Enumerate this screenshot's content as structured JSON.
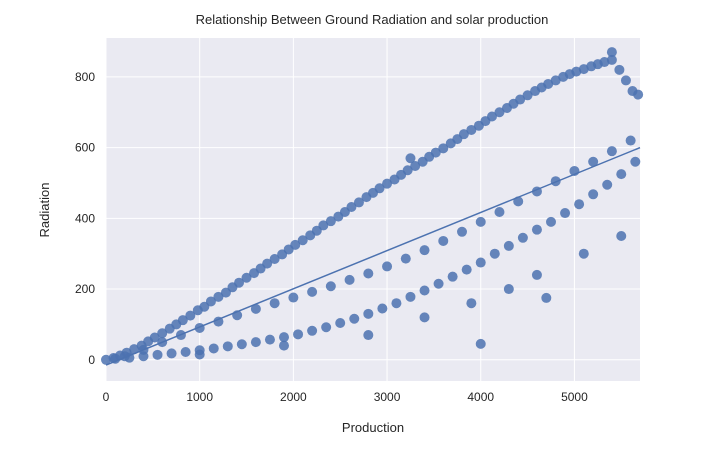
{
  "chart_data": {
    "type": "scatter",
    "title": "Relationship Between Ground Radiation and solar production",
    "xlabel": "Production",
    "ylabel": "Radiation",
    "xlim": [
      0,
      5700
    ],
    "ylim": [
      -60,
      910
    ],
    "x_ticks": [
      0,
      1000,
      2000,
      3000,
      4000,
      5000
    ],
    "y_ticks": [
      0,
      200,
      400,
      600,
      800
    ],
    "grid": true,
    "background": "#eaeaf2",
    "point_color": "#4c72b0",
    "trend_line": {
      "x": [
        0,
        5700
      ],
      "y": [
        -15,
        600
      ]
    },
    "series": [
      {
        "x": [
          0,
          80,
          150,
          220,
          300,
          380,
          450,
          520,
          600,
          680,
          750,
          820,
          900,
          980,
          1050,
          1120,
          1200,
          1280,
          1350,
          1420,
          1500,
          1580,
          1650,
          1720,
          1800,
          1880,
          1950,
          2020,
          2100,
          2180,
          2250,
          2320,
          2400,
          2480,
          2550,
          2620,
          2700,
          2780,
          2850,
          2920,
          3000,
          3080,
          3150,
          3220,
          3300,
          3380,
          3450,
          3520,
          3600,
          3680,
          3750,
          3820,
          3900,
          3980,
          4050,
          4120,
          4200,
          4280,
          4350,
          4420,
          4500,
          4580,
          4650,
          4720,
          4800,
          4880,
          4950,
          5020,
          5100,
          5180,
          5250,
          5320,
          5400,
          5480,
          5550,
          5620,
          5680,
          1000,
          1900,
          2800,
          3400,
          3900,
          4300,
          4600,
          5100,
          5500,
          4000,
          4700,
          3250,
          5400
        ],
        "y": [
          0,
          5,
          12,
          20,
          30,
          40,
          52,
          63,
          75,
          88,
          100,
          112,
          125,
          140,
          150,
          165,
          178,
          190,
          205,
          218,
          232,
          245,
          258,
          272,
          285,
          298,
          312,
          325,
          338,
          352,
          365,
          380,
          392,
          405,
          418,
          432,
          445,
          460,
          472,
          485,
          498,
          510,
          523,
          536,
          548,
          560,
          574,
          586,
          598,
          612,
          624,
          638,
          650,
          662,
          675,
          688,
          700,
          712,
          724,
          736,
          748,
          760,
          770,
          780,
          790,
          800,
          808,
          815,
          822,
          830,
          836,
          842,
          848,
          820,
          790,
          760,
          750,
          15,
          40,
          70,
          120,
          160,
          200,
          240,
          300,
          350,
          45,
          175,
          570,
          870
        ]
      },
      {
        "x": [
          100,
          250,
          400,
          550,
          700,
          850,
          1000,
          1150,
          1300,
          1450,
          1600,
          1750,
          1900,
          2050,
          2200,
          2350,
          2500,
          2650,
          2800,
          2950,
          3100,
          3250,
          3400,
          3550,
          3700,
          3850,
          4000,
          4150,
          4300,
          4450,
          4600,
          4750,
          4900,
          5050,
          5200,
          5350,
          5500,
          5650
        ],
        "y": [
          3,
          6,
          10,
          14,
          18,
          22,
          27,
          32,
          38,
          44,
          50,
          57,
          64,
          72,
          82,
          92,
          104,
          116,
          130,
          145,
          160,
          178,
          196,
          215,
          235,
          255,
          275,
          300,
          322,
          345,
          368,
          390,
          415,
          440,
          468,
          495,
          525,
          560
        ]
      },
      {
        "x": [
          200,
          400,
          600,
          800,
          1000,
          1200,
          1400,
          1600,
          1800,
          2000,
          2200,
          2400,
          2600,
          2800,
          3000,
          3200,
          3400,
          3600,
          3800,
          4000,
          4200,
          4400,
          4600,
          4800,
          5000,
          5200,
          5400,
          5600
        ],
        "y": [
          10,
          28,
          50,
          70,
          90,
          108,
          126,
          144,
          160,
          176,
          192,
          208,
          226,
          244,
          264,
          286,
          310,
          336,
          362,
          390,
          418,
          448,
          476,
          505,
          534,
          560,
          590,
          620
        ]
      }
    ]
  }
}
